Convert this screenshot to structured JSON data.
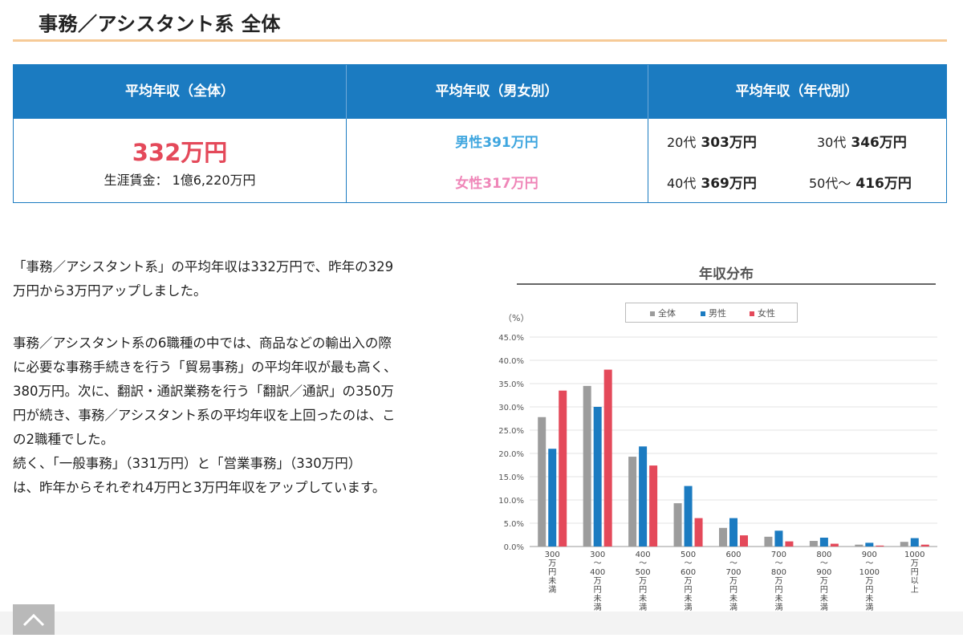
{
  "page_title": "事務／アシスタント系 全体",
  "summary": {
    "headers": [
      "平均年収（全体）",
      "平均年収（男女別）",
      "平均年収（年代別）"
    ],
    "overall_amount": "332万円",
    "lifetime_wage": "生涯賃金： 1億6,220万円",
    "male": "男性391万円",
    "female": "女性317万円",
    "ages": [
      {
        "label": "20代",
        "value": "303万円"
      },
      {
        "label": "30代",
        "value": "346万円"
      },
      {
        "label": "40代",
        "value": "369万円"
      },
      {
        "label": "50代～",
        "value": "416万円"
      }
    ]
  },
  "article": {
    "paragraph1_lines": [
      "「事務／アシスタント系」の平均年収は332万円で、昨年の329",
      "万円から3万円アップしました。"
    ],
    "paragraph2_lines": [
      "事務／アシスタント系の6職種の中では、商品などの輸出入の際",
      "に必要な事務手続きを行う「貿易事務」の平均年収が最も高く、",
      "380万円。次に、翻訳・通訳業務を行う「翻訳／通訳」の350万",
      "円が続き、事務／アシスタント系の平均年収を上回ったのは、こ",
      "の2職種でした。",
      "続く、「一般事務」（331万円）と「営業事務」（330万円）",
      "は、昨年からそれぞれ4万円と3万円年収をアップしています。"
    ]
  },
  "chart_data": {
    "type": "bar",
    "title": "年収分布",
    "ylabel": "（%）",
    "ylim": [
      0,
      45
    ],
    "yticks": [
      "0.0%",
      "5.0%",
      "10.0%",
      "15.0%",
      "20.0%",
      "25.0%",
      "30.0%",
      "35.0%",
      "40.0%",
      "45.0%"
    ],
    "categories": [
      [
        "300",
        "万円未満"
      ],
      [
        "300",
        "～",
        "400",
        "万円未満"
      ],
      [
        "400",
        "～",
        "500",
        "万円未満"
      ],
      [
        "500",
        "～",
        "600",
        "万円未満"
      ],
      [
        "600",
        "～",
        "700",
        "万円未満"
      ],
      [
        "700",
        "～",
        "800",
        "万円未満"
      ],
      [
        "800",
        "～",
        "900",
        "万円未満"
      ],
      [
        "900",
        "～",
        "1000",
        "万円未満"
      ],
      [
        "1000",
        "万円以上"
      ]
    ],
    "series": [
      {
        "name": "全体",
        "color": "#9c9c9c",
        "values": [
          27.8,
          34.5,
          19.3,
          9.3,
          4.0,
          2.1,
          1.2,
          0.4,
          1.0
        ]
      },
      {
        "name": "男性",
        "color": "#1b7bc1",
        "values": [
          21.0,
          30.0,
          21.5,
          13.0,
          6.1,
          3.4,
          1.9,
          0.8,
          1.8
        ]
      },
      {
        "name": "女性",
        "color": "#e4495a",
        "values": [
          33.5,
          38.0,
          17.4,
          6.1,
          2.4,
          1.1,
          0.6,
          0.2,
          0.4
        ]
      }
    ],
    "grid": true,
    "legend": "top"
  },
  "icons": {
    "scroll_top": "chevron-up-icon"
  }
}
